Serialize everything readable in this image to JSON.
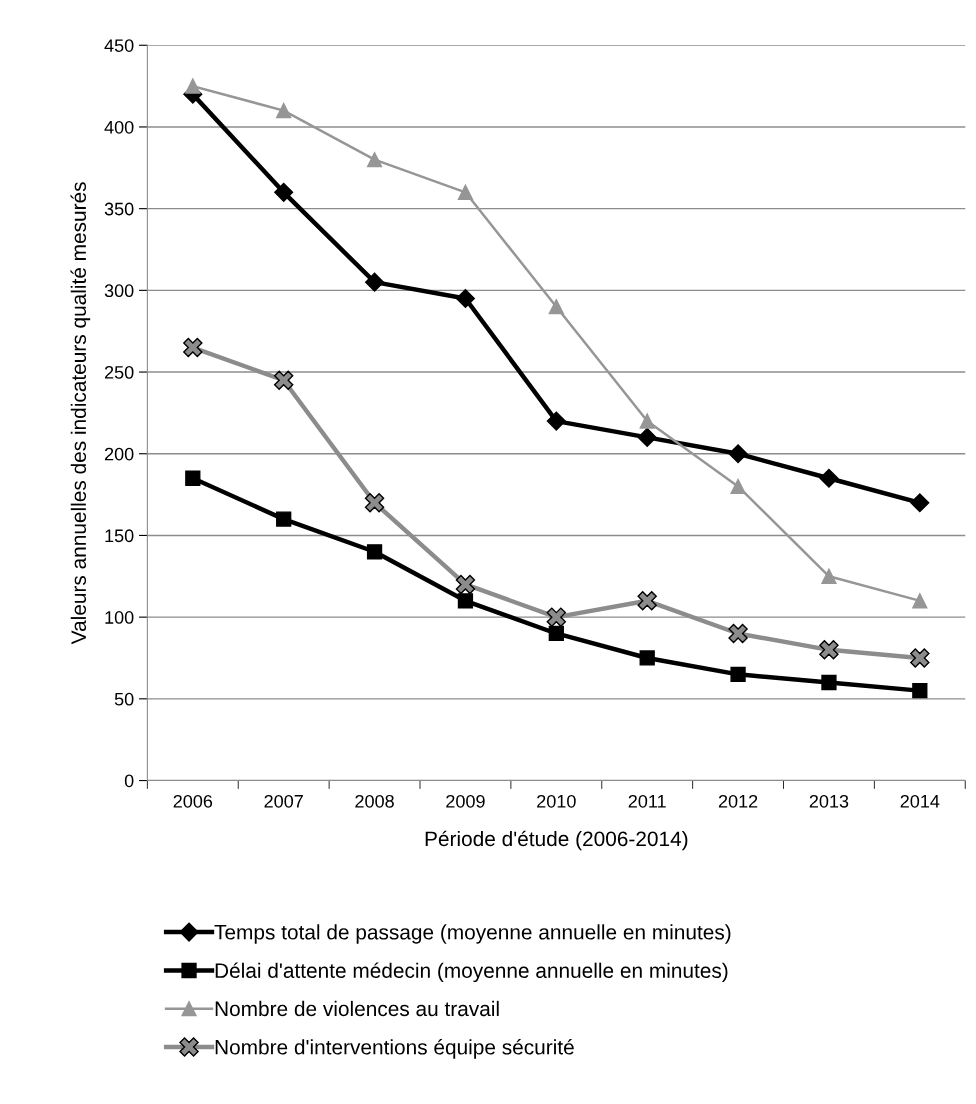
{
  "chart_data": {
    "type": "line",
    "xlabel": "Période d'étude (2006-2014)",
    "ylabel": "Valeurs annuelles des indicateurs qualité mesurés",
    "categories": [
      "2006",
      "2007",
      "2008",
      "2009",
      "2010",
      "2011",
      "2012",
      "2013",
      "2014"
    ],
    "series": [
      {
        "name": "Temps total de passage (moyenne annuelle en minutes)",
        "color": "#000000",
        "marker": "diamond",
        "values": [
          420,
          360,
          305,
          295,
          220,
          210,
          200,
          185,
          170
        ]
      },
      {
        "name": "Délai d'attente médecin (moyenne annuelle en minutes)",
        "color": "#000000",
        "marker": "square",
        "values": [
          185,
          160,
          140,
          110,
          90,
          75,
          65,
          60,
          55
        ]
      },
      {
        "name": "Nombre de violences au travail",
        "color": "#969696",
        "marker": "triangle",
        "values": [
          425,
          410,
          380,
          360,
          290,
          220,
          180,
          125,
          110
        ]
      },
      {
        "name": "Nombre d'interventions équipe sécurité",
        "color": "#8c8c8c",
        "marker": "cross",
        "values": [
          265,
          245,
          170,
          120,
          100,
          110,
          90,
          80,
          75
        ]
      }
    ],
    "ylim": [
      0,
      450
    ],
    "yticks": [
      0,
      50,
      100,
      150,
      200,
      250,
      300,
      350,
      400,
      450
    ],
    "grid": "y",
    "legend": "bottom",
    "line_style": "solid"
  }
}
